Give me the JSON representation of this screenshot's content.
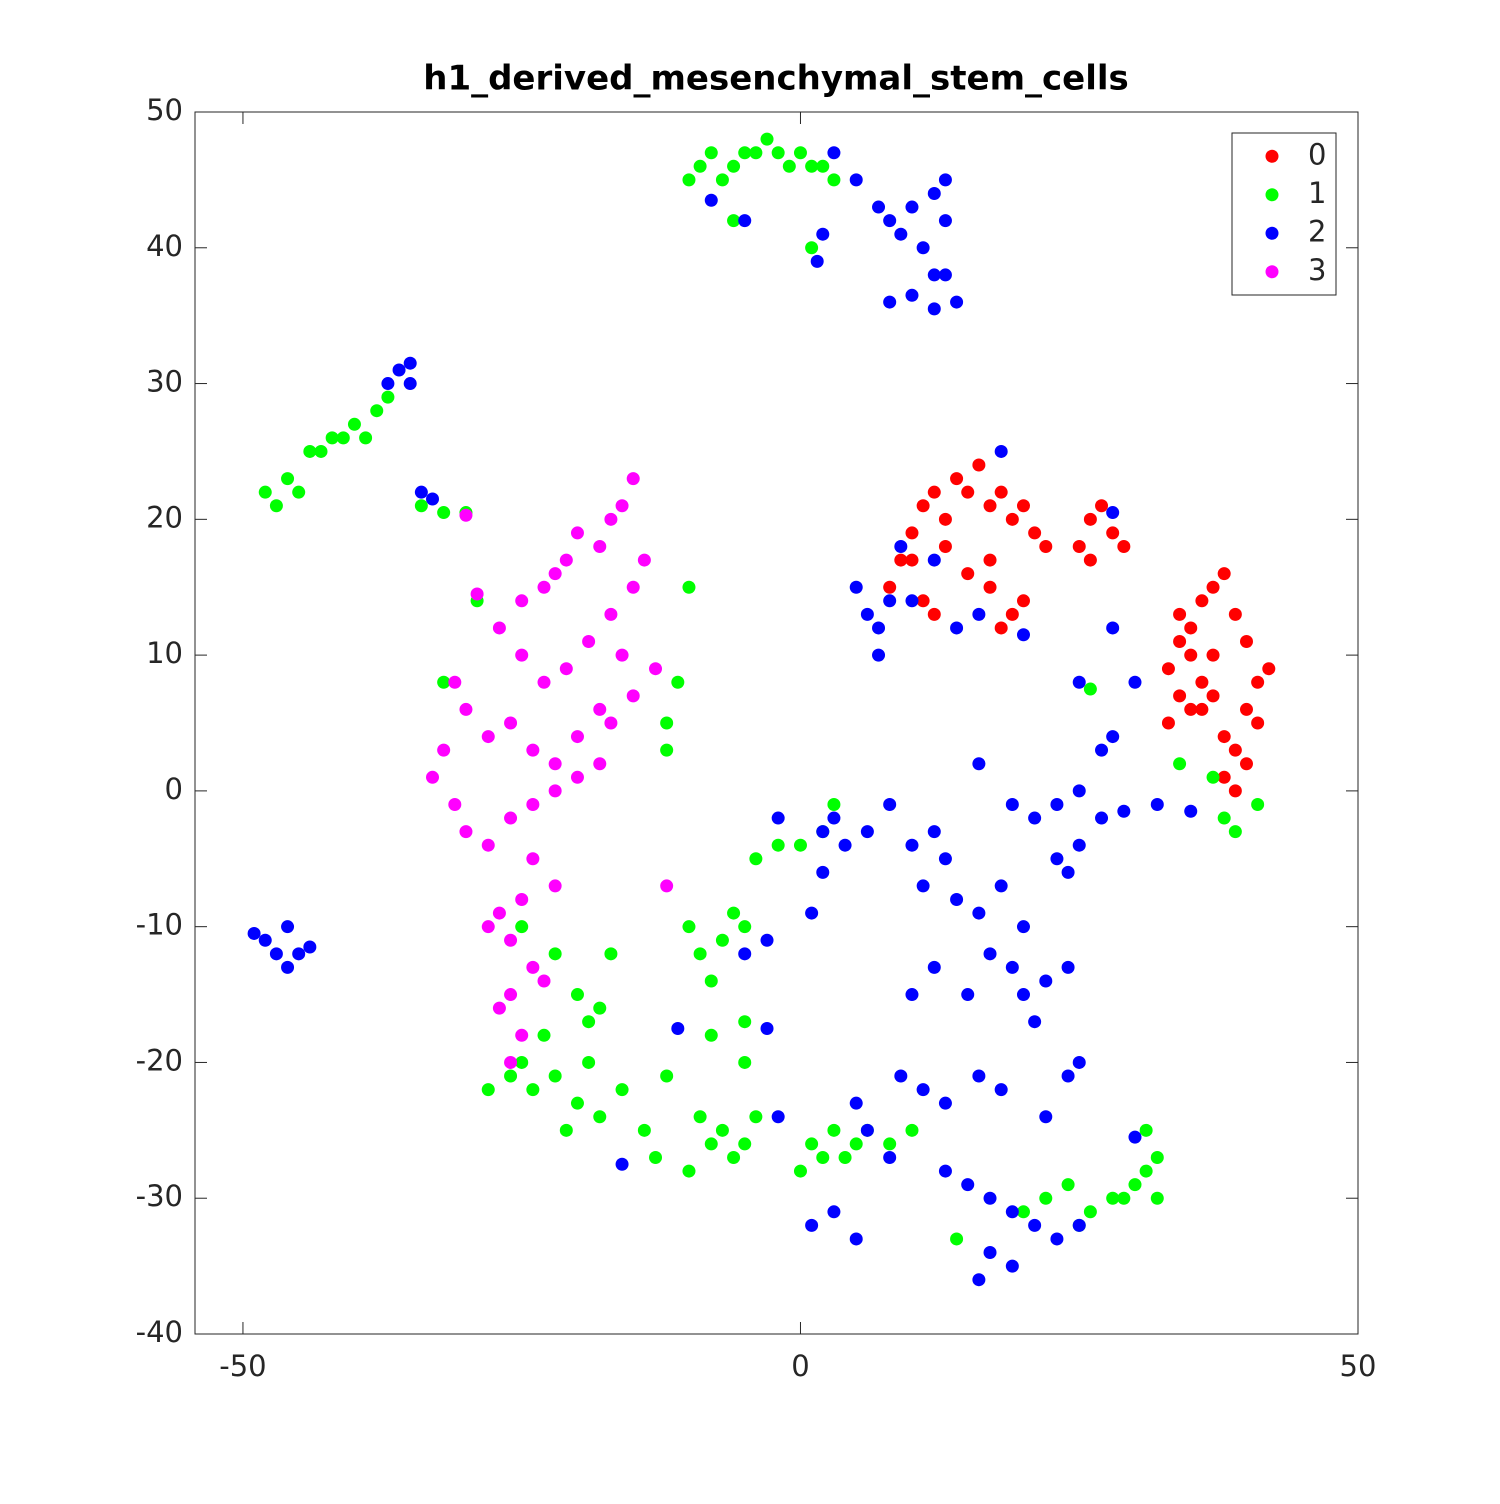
{
  "chart_data": {
    "type": "scatter",
    "title": "h1_derived_mesenchymal_stem_cells",
    "xlim": [
      -54.3,
      50
    ],
    "ylim": [
      -40,
      50
    ],
    "xticks": [
      -50,
      0,
      50
    ],
    "yticks": [
      -40,
      -30,
      -20,
      -10,
      0,
      10,
      20,
      30,
      40,
      50
    ],
    "legend": "upper right",
    "series": [
      {
        "name": "0",
        "color": "#ff0000",
        "x": [
          8,
          9,
          10,
          11,
          12,
          13,
          14,
          15,
          16,
          17,
          18,
          19,
          20,
          21,
          22,
          13,
          15,
          17,
          19,
          11,
          10,
          12,
          18,
          20,
          17,
          25,
          26,
          27,
          28,
          26,
          29,
          33,
          34,
          35,
          36,
          37,
          38,
          39,
          40,
          41,
          42,
          34,
          35,
          36,
          37,
          38,
          33,
          39,
          40,
          41,
          38,
          36,
          35,
          34,
          37,
          39,
          40
        ],
        "values": [
          15,
          17,
          19,
          21,
          22,
          20,
          23,
          22,
          24,
          21,
          22,
          20,
          21,
          19,
          18,
          18,
          16,
          15,
          13,
          14,
          17,
          13,
          12,
          14,
          17,
          18,
          20,
          21,
          19,
          17,
          18,
          9,
          13,
          12,
          14,
          15,
          16,
          13,
          11,
          8,
          9,
          7,
          6,
          8,
          10,
          4,
          5,
          3,
          2,
          5,
          1,
          6,
          10,
          11,
          7,
          0,
          6
        ]
      },
      {
        "name": "1",
        "color": "#00ff00",
        "x": [
          -9,
          -8,
          -7,
          -6,
          -5,
          -4,
          -3,
          -2,
          -1,
          0,
          1,
          2,
          3,
          -10,
          -6,
          1,
          -48,
          -47,
          -46,
          -45,
          -44,
          -43,
          -42,
          -41,
          -40,
          -39,
          -38,
          -37,
          -34,
          -32,
          -30,
          -32,
          -29,
          -12,
          -12,
          -10,
          -11,
          -25,
          -22,
          -20,
          -19,
          -18,
          -17,
          -23,
          -25,
          -26,
          -24,
          -22,
          -20,
          -18,
          -16,
          -14,
          -13,
          -28,
          -21,
          -19,
          -10,
          -9,
          -8,
          -7,
          -6,
          -5,
          -8,
          -9,
          -8,
          -7,
          -6,
          -5,
          -4,
          -10,
          -12,
          -5,
          -5,
          -4,
          -2,
          0,
          2,
          3,
          1,
          2,
          3,
          4,
          5,
          6,
          8,
          10,
          0,
          14,
          20,
          22,
          24,
          26,
          28,
          30,
          31,
          32,
          31,
          29,
          32,
          25,
          34,
          37,
          38,
          39,
          41,
          26
        ],
        "values": [
          46,
          47,
          45,
          46,
          47,
          47,
          48,
          47,
          46,
          47,
          46,
          46,
          45,
          45,
          42,
          40,
          22,
          21,
          23,
          22,
          25,
          25,
          26,
          26,
          27,
          26,
          28,
          29,
          21,
          20.5,
          20.5,
          8,
          14,
          5,
          3,
          15,
          8,
          -10,
          -12,
          -15,
          -17,
          -16,
          -12,
          -18,
          -20,
          -21,
          -22,
          -21,
          -23,
          -24,
          -22,
          -25,
          -27,
          -22,
          -25,
          -20,
          -10,
          -12,
          -14,
          -11,
          -9,
          -10,
          -18,
          -24,
          -26,
          -25,
          -27,
          -26,
          -24,
          -28,
          -21,
          -20,
          -17,
          -5,
          -4,
          -4,
          -3,
          -1,
          -26,
          -27,
          -25,
          -27,
          -26,
          -25,
          -26,
          -25,
          -28,
          -33,
          -31,
          -30,
          -29,
          -31,
          -30,
          -29,
          -28,
          -27,
          -25,
          -30,
          -30,
          -32,
          2,
          1,
          -2,
          -3,
          -1,
          7.5
        ]
      },
      {
        "name": "2",
        "color": "#0000ff",
        "x": [
          3,
          5,
          7,
          8,
          9,
          10,
          11,
          12,
          13,
          13,
          12,
          13,
          14,
          12,
          10,
          8,
          1.5,
          2,
          -5,
          -8,
          -37,
          -36,
          -35,
          -35,
          -34,
          -33,
          -49,
          -48,
          -47,
          -46,
          -45,
          -44,
          -46,
          5,
          6,
          7,
          8,
          7,
          10,
          9,
          12,
          18,
          14,
          16,
          20,
          28,
          25,
          28,
          30,
          27,
          28,
          -2,
          2,
          3,
          4,
          6,
          8,
          2,
          1,
          10,
          12,
          13,
          11,
          14,
          16,
          18,
          20,
          17,
          19,
          20,
          22,
          24,
          21,
          15,
          12,
          10,
          9,
          11,
          13,
          16,
          18,
          25,
          22,
          24,
          5,
          6,
          8,
          13,
          15,
          17,
          19,
          21,
          23,
          25,
          17,
          16,
          19,
          3,
          5,
          1,
          -3,
          -5,
          -3,
          -16,
          -11,
          -2,
          21,
          23,
          25,
          27,
          29,
          32,
          35,
          23,
          25,
          24,
          16,
          19,
          30
        ],
        "values": [
          47,
          45,
          43,
          42,
          41,
          43,
          40,
          44,
          45,
          42,
          38,
          38,
          36,
          35.5,
          36.5,
          36,
          39,
          41,
          42,
          43.5,
          30,
          31,
          31.5,
          30,
          22,
          21.5,
          -10.5,
          -11,
          -12,
          -13,
          -12,
          -11.5,
          -10,
          15,
          13,
          12,
          14,
          10,
          14,
          18,
          17,
          25,
          12,
          13,
          11.5,
          20.5,
          8,
          12,
          8,
          3,
          4,
          -2,
          -3,
          -2,
          -4,
          -3,
          -1,
          -6,
          -9,
          -4,
          -3,
          -5,
          -7,
          -8,
          -9,
          -7,
          -10,
          -12,
          -13,
          -15,
          -14,
          -13,
          -17,
          -15,
          -13,
          -15,
          -21,
          -22,
          -23,
          -21,
          -22,
          -20,
          -24,
          -21,
          -23,
          -25,
          -27,
          -28,
          -29,
          -30,
          -31,
          -32,
          -33,
          -32,
          -34,
          -36,
          -35,
          -31,
          -33,
          -32,
          -17.5,
          -12,
          -11,
          -27.5,
          -17.5,
          -24,
          -2,
          -1,
          0,
          -2,
          -1.5,
          -1,
          -1.5,
          -5,
          -4,
          -6,
          2,
          -1,
          -25.5
        ]
      },
      {
        "name": "3",
        "color": "#ff00ff",
        "x": [
          -15,
          -16,
          -17,
          -18,
          -20,
          -21,
          -22,
          -23,
          -25,
          -27,
          -25,
          -23,
          -21,
          -19,
          -17,
          -15,
          -14,
          -16,
          -18,
          -20,
          -22,
          -24,
          -26,
          -28,
          -30,
          -31,
          -32,
          -33,
          -31,
          -30,
          -28,
          -26,
          -24,
          -22,
          -20,
          -18,
          -17,
          -15,
          -13,
          -24,
          -22,
          -25,
          -27,
          -28,
          -26,
          -24,
          -26,
          -27,
          -25,
          -23,
          -26,
          -12,
          -29,
          -30
        ],
        "values": [
          23,
          21,
          20,
          18,
          19,
          17,
          16,
          15,
          14,
          12,
          10,
          8,
          9,
          11,
          13,
          15,
          17,
          10,
          6,
          4,
          2,
          3,
          5,
          4,
          6,
          8,
          3,
          1,
          -1,
          -3,
          -4,
          -2,
          -1,
          0,
          1,
          2,
          5,
          7,
          9,
          -5,
          -7,
          -8,
          -9,
          -10,
          -11,
          -13,
          -15,
          -16,
          -18,
          -14,
          -20,
          -7,
          14.5,
          20.3
        ]
      }
    ]
  }
}
